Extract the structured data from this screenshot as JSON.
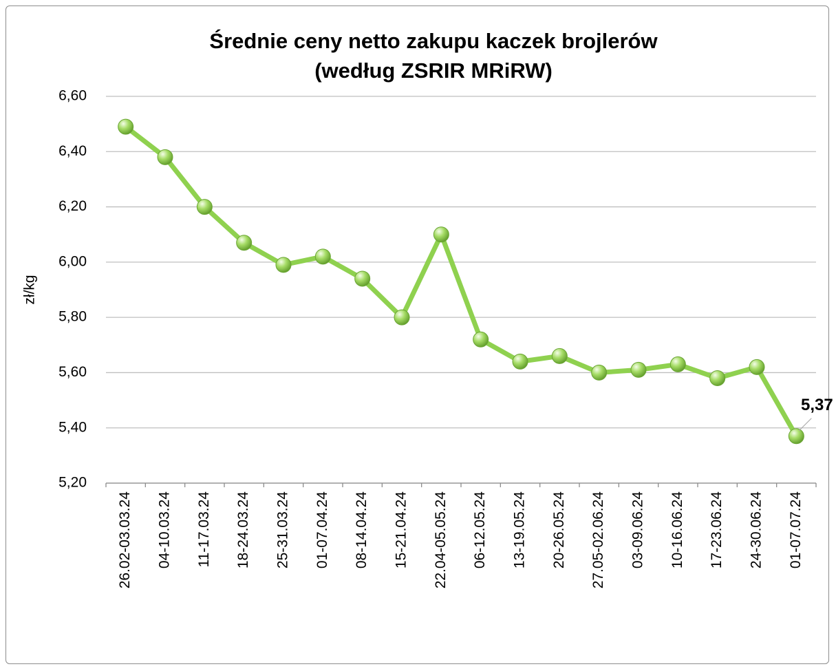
{
  "chart_data": {
    "type": "line",
    "title": "Średnie ceny netto zakupu kaczek brojlerów (według ZSRIR MRiRW)",
    "y_label": "zł/kg",
    "categories": [
      "26.02-03.03.24",
      "04-10.03.24",
      "11-17.03.24",
      "18-24.03.24",
      "25-31.03.24",
      "01-07.04.24",
      "08-14.04.24",
      "15-21.04.24",
      "22.04-05.05.24",
      "06-12.05.24",
      "13-19.05.24",
      "20-26.05.24",
      "27.05-02.06.24",
      "03-09.06.24",
      "10-16.06.24",
      "17-23.06.24",
      "24-30.06.24",
      "01-07.07.24"
    ],
    "values": [
      6.49,
      6.38,
      6.2,
      6.07,
      5.99,
      6.02,
      5.94,
      5.8,
      6.1,
      5.72,
      5.64,
      5.66,
      5.6,
      5.61,
      5.63,
      5.58,
      5.62,
      5.37
    ],
    "value_labels": [
      null,
      null,
      null,
      null,
      null,
      null,
      null,
      null,
      null,
      null,
      null,
      null,
      null,
      null,
      null,
      null,
      null,
      "5,37"
    ],
    "color": "#8fd14f",
    "ylim": [
      5.2,
      6.6
    ],
    "yticks": [
      {
        "value": 5.2,
        "label": "5,20"
      },
      {
        "value": 5.4,
        "label": "5,40"
      },
      {
        "value": 5.6,
        "label": "5,60"
      },
      {
        "value": 5.8,
        "label": "5,80"
      },
      {
        "value": 6.0,
        "label": "6,00"
      },
      {
        "value": 6.2,
        "label": "6,20"
      },
      {
        "value": 6.4,
        "label": "6,40"
      },
      {
        "value": 6.6,
        "label": "6,60"
      }
    ],
    "grid": true
  }
}
